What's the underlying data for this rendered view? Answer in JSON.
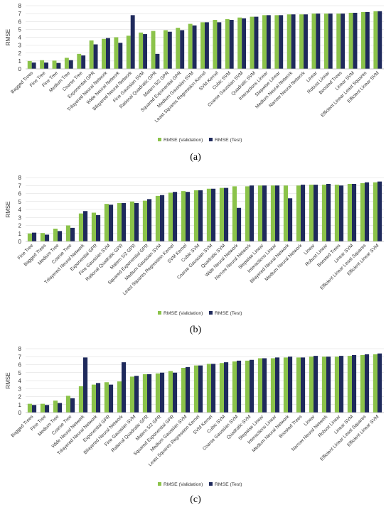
{
  "colors": {
    "validation": "#8bc34a",
    "test": "#1f2a5c",
    "grid": "#d9d9d9",
    "text": "#333333"
  },
  "chart_data": [
    {
      "panel": "(a)",
      "type": "bar",
      "ylabel": "RMSE",
      "ylim": [
        0,
        8
      ],
      "yticks": [
        0,
        1,
        2,
        3,
        4,
        5,
        6,
        7,
        8
      ],
      "grid": true,
      "legend_position": "bottom",
      "categories": [
        "Bagged Trees",
        "Fine Tree",
        "Fine Tree",
        "Medium Tree",
        "Coarse Tree",
        "Exponential GPR",
        "Trilayered Neural Network",
        "Wide Neural Network",
        "Bilayered Neural Network",
        "Fine Gaussian SVM",
        "Rational Quadratic GPR",
        "Matern 5/2 GPR",
        "Squared Exponential GPR",
        "Medium Gaussian SVM",
        "Least Squares Regression Kernel",
        "SVM Kernel",
        "Cubic SVM",
        "Coarse Gaussian SVM",
        "Quadratic SVM",
        "Interactions Linear",
        "Stepwise Linear",
        "Medium Neural Network",
        "Narrow Neural Network",
        "Linear",
        "Robust Linear",
        "Boosted Trees",
        "Linear SVM",
        "Efficient Linear Least Squares",
        "Efficient Linear SVM"
      ],
      "series": [
        {
          "name": "RMSE (Validation)",
          "values": [
            1.0,
            1.1,
            1.05,
            1.4,
            1.9,
            3.6,
            3.8,
            4.0,
            4.2,
            4.6,
            4.8,
            4.9,
            5.2,
            5.7,
            5.9,
            6.2,
            6.3,
            6.5,
            6.6,
            6.8,
            6.8,
            6.9,
            6.9,
            7.0,
            7.0,
            7.0,
            7.1,
            7.2,
            7.3
          ]
        },
        {
          "name": "RMSE (Test)",
          "values": [
            0.8,
            0.8,
            0.75,
            1.1,
            1.7,
            3.1,
            3.9,
            3.3,
            6.8,
            4.4,
            1.9,
            4.7,
            4.9,
            5.5,
            5.9,
            5.9,
            6.2,
            6.4,
            6.6,
            6.8,
            6.8,
            6.9,
            6.9,
            7.0,
            7.0,
            7.0,
            7.1,
            7.2,
            7.3
          ]
        }
      ]
    },
    {
      "panel": "(b)",
      "type": "bar",
      "ylabel": "RMSE",
      "ylim": [
        0,
        8
      ],
      "yticks": [
        0,
        1,
        2,
        3,
        4,
        5,
        6,
        7,
        8
      ],
      "grid": true,
      "legend_position": "bottom",
      "categories": [
        "Fine Tree",
        "Bagged Trees",
        "Medium Tree",
        "Coarse Tree",
        "Trilayered Neural Network",
        "Exponential GPR",
        "Fine Gaussian SVM",
        "Rational Quadratic GPR",
        "Matern 5/2 GPR",
        "Squared Exponential GPR",
        "Medium Gaussian SVM",
        "Least Squares Regression Kernel",
        "SVM Kernel",
        "Cubic SVM",
        "Coarse Gaussian SVM",
        "Quadratic SVM",
        "Wide Neural Network",
        "Narrow Neural Network",
        "Stepwise Linear",
        "Interactions Linear",
        "Bilayered Neural Network",
        "Medium Neural Network",
        "Linear",
        "Robust Linear",
        "Boosted Trees",
        "Linear SVM",
        "Efficient Linear Least Squares",
        "Efficient Linear SVM"
      ],
      "series": [
        {
          "name": "RMSE (Validation)",
          "values": [
            1.0,
            1.05,
            1.6,
            2.0,
            3.5,
            3.6,
            4.7,
            4.8,
            5.0,
            5.1,
            5.7,
            6.1,
            6.3,
            6.4,
            6.6,
            6.7,
            6.9,
            6.9,
            7.0,
            7.0,
            7.0,
            7.0,
            7.1,
            7.1,
            7.1,
            7.2,
            7.3,
            7.4
          ]
        },
        {
          "name": "RMSE (Test)",
          "values": [
            1.1,
            0.85,
            1.3,
            1.7,
            3.8,
            3.3,
            4.6,
            4.8,
            4.8,
            5.3,
            5.8,
            6.2,
            6.2,
            6.4,
            6.6,
            6.7,
            4.2,
            7.0,
            7.0,
            7.0,
            5.4,
            7.1,
            7.1,
            7.2,
            7.0,
            7.2,
            7.4,
            7.5
          ]
        }
      ]
    },
    {
      "panel": "(c)",
      "type": "bar",
      "ylabel": "RMSE",
      "ylim": [
        0,
        8
      ],
      "yticks": [
        0,
        1,
        2,
        3,
        4,
        5,
        6,
        7,
        8
      ],
      "grid": true,
      "legend_position": "bottom",
      "categories": [
        "Bagged Trees",
        "Fine Tree",
        "Medium Tree",
        "Coarse Tree",
        "Wide Neural Network",
        "Trilayered Neural Network",
        "Exponential GPR",
        "Bilayered Neural Network",
        "Fine Gaussian SVM",
        "Rational Quadratic GPR",
        "Matern 5/2 GPR",
        "Squared Exponential GPR",
        "Medium Gaussian SVM",
        "Least Squares Regression Kernel",
        "SVM Kernel",
        "Cubic SVM",
        "Coarse Gaussian SVM",
        "Quadratic SVM",
        "Stepwise Linear",
        "Interactions Linear",
        "Medium Neural Network",
        "Boosted Trees",
        "Linear",
        "Narrow Neural Network",
        "Robust Linear",
        "Linear SVM",
        "Efficient Linear Least Squares",
        "Efficient Linear SVM"
      ],
      "series": [
        {
          "name": "RMSE (Validation)",
          "values": [
            1.1,
            1.1,
            1.5,
            2.1,
            3.3,
            3.5,
            3.8,
            3.9,
            4.5,
            4.8,
            4.9,
            5.2,
            5.6,
            5.9,
            6.1,
            6.2,
            6.4,
            6.5,
            6.8,
            6.8,
            6.9,
            6.9,
            7.0,
            7.0,
            7.0,
            7.1,
            7.2,
            7.3
          ]
        },
        {
          "name": "RMSE (Test)",
          "values": [
            0.95,
            0.95,
            1.2,
            1.8,
            6.9,
            3.7,
            3.5,
            6.3,
            4.6,
            4.8,
            5.0,
            5.0,
            5.7,
            5.9,
            6.1,
            6.3,
            6.5,
            6.6,
            6.8,
            6.9,
            7.0,
            6.9,
            7.1,
            7.0,
            7.1,
            7.2,
            7.3,
            7.4
          ]
        }
      ]
    }
  ]
}
